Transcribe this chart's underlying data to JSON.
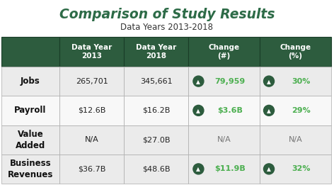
{
  "title": "Comparison of Study Results",
  "subtitle": "Data Years 2013-2018",
  "title_color": "#2d6b47",
  "subtitle_color": "#333333",
  "header_bg": "#2d5c3e",
  "header_text_color": "#ffffff",
  "row_bg_odd": "#ebebeb",
  "row_bg_even": "#f8f8f8",
  "border_color": "#aaaaaa",
  "green_text_color": "#4caf50",
  "arrow_circle_color": "#2d5c3e",
  "col_headers": [
    "Data Year\n2013",
    "Data Year\n2018",
    "Change\n(#)",
    "Change\n(%)"
  ],
  "rows": [
    {
      "label": "Jobs",
      "col1": "265,701",
      "col2": "345,661",
      "col3_arrow": true,
      "col3": "79,959",
      "col4_arrow": true,
      "col4": "30%"
    },
    {
      "label": "Payroll",
      "col1": "$12.6B",
      "col2": "$16.2B",
      "col3_arrow": true,
      "col3": "$3.6B",
      "col4_arrow": true,
      "col4": "29%"
    },
    {
      "label": "Value\nAdded",
      "col1": "N/A",
      "col2": "$27.0B",
      "col3_arrow": false,
      "col3": "N/A",
      "col4_arrow": false,
      "col4": "N/A"
    },
    {
      "label": "Business\nRevenues",
      "col1": "$36.7B",
      "col2": "$48.6B",
      "col3_arrow": true,
      "col3": "$11.9B",
      "col4_arrow": true,
      "col4": "32%"
    }
  ],
  "title_fontsize": 13.5,
  "subtitle_fontsize": 8.5,
  "header_fontsize": 7.5,
  "cell_fontsize": 8,
  "label_fontsize": 8.5,
  "na_color": "#777777",
  "fig_w": 4.72,
  "fig_h": 2.61,
  "dpi": 100
}
